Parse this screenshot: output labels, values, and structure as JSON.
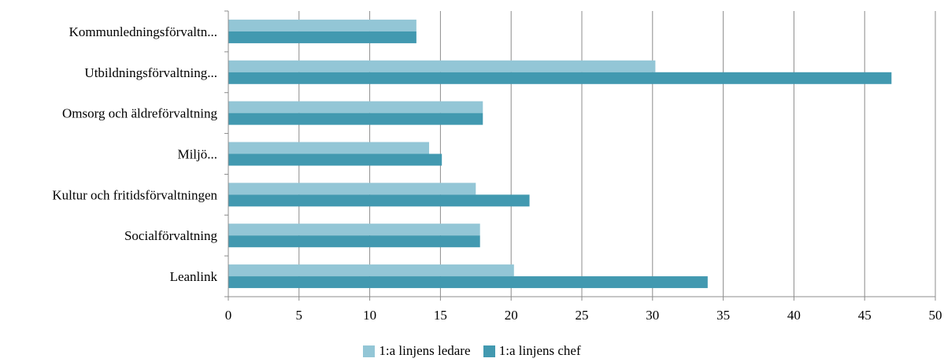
{
  "chart_data": {
    "type": "bar",
    "orientation": "horizontal",
    "categories": [
      "Kommunledningsförvaltn...",
      "Utbildningsförvaltning...",
      "Omsorg och äldreförvaltning",
      "Miljö...",
      "Kultur och fritidsförvaltningen",
      "Socialförvaltning",
      "Leanlink"
    ],
    "series": [
      {
        "name": "1:a linjens ledare",
        "color": "#93c6d6",
        "values": [
          13.3,
          30.2,
          18.0,
          14.2,
          17.5,
          17.8,
          20.2
        ]
      },
      {
        "name": "1:a linjens chef",
        "color": "#4299b0",
        "values": [
          13.3,
          46.9,
          18.0,
          15.1,
          21.3,
          17.8,
          33.9
        ]
      }
    ],
    "xlim": [
      0,
      50
    ],
    "xticks": [
      0,
      5,
      10,
      15,
      20,
      25,
      30,
      35,
      40,
      45,
      50
    ],
    "grid": true,
    "legend_position": "bottom"
  }
}
